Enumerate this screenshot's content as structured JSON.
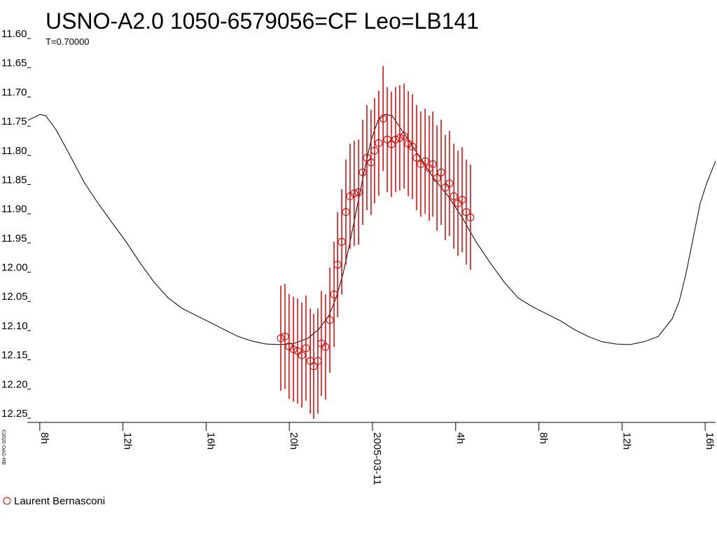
{
  "chart_data": {
    "type": "scatter",
    "title": "USNO-A2.0 1050-6579056=CF Leo=LB141",
    "subtitle": "T=0.70000",
    "credit": "©2020 OAG-RB",
    "xlim": [
      -16.6,
      16.5
    ],
    "xticks": [
      {
        "value": -16,
        "label": "8h"
      },
      {
        "value": -12,
        "label": "12h"
      },
      {
        "value": -8,
        "label": "16h"
      },
      {
        "value": -4,
        "label": "20h"
      },
      {
        "value": 0,
        "label": "2005-03-11"
      },
      {
        "value": 4,
        "label": "4h"
      },
      {
        "value": 8,
        "label": "8h"
      },
      {
        "value": 12,
        "label": "12h"
      },
      {
        "value": 16,
        "label": "16h"
      }
    ],
    "ylim": [
      11.6,
      12.25
    ],
    "y_inverted": true,
    "yticks": [
      {
        "value": 11.6,
        "label": "11.60"
      },
      11.65,
      {
        "value": 11.7,
        "label": "11.70"
      },
      11.75,
      {
        "value": 11.8,
        "label": "11.80"
      },
      11.85,
      {
        "value": 11.9,
        "label": "11.90"
      },
      11.95,
      {
        "value": 12,
        "label": "12.00"
      },
      12.05,
      {
        "value": 12.1,
        "label": "12.10"
      },
      12.15,
      {
        "value": 12.2,
        "label": "12.20"
      },
      12.25
    ],
    "series": [
      {
        "name": "Laurent Bernasconi",
        "color": "#e00000",
        "x": [
          -4.41,
          -4.21,
          -4.01,
          -3.8,
          -3.6,
          -3.4,
          -3.2,
          -2.99,
          -2.83,
          -2.63,
          -2.46,
          -2.26,
          -2.05,
          -1.85,
          -1.68,
          -1.48,
          -1.28,
          -1.08,
          -0.88,
          -0.67,
          -0.47,
          -0.27,
          -0.07,
          0.1,
          0.3,
          0.51,
          0.71,
          0.91,
          1.11,
          1.31,
          1.52,
          1.72,
          1.92,
          2.12,
          2.32,
          2.53,
          2.73,
          2.9,
          3.1,
          3.3,
          3.5,
          3.7,
          3.91,
          4.11,
          4.31,
          4.51,
          4.71
        ],
        "values": [
          12.113,
          12.11,
          12.127,
          12.132,
          12.135,
          12.142,
          12.13,
          12.152,
          12.161,
          12.152,
          12.122,
          12.128,
          12.082,
          12.038,
          11.987,
          11.948,
          11.897,
          11.87,
          11.865,
          11.863,
          11.829,
          11.804,
          11.812,
          11.792,
          11.779,
          11.737,
          11.773,
          11.781,
          11.773,
          11.77,
          11.767,
          11.78,
          11.785,
          11.804,
          11.815,
          11.81,
          11.822,
          11.815,
          11.839,
          11.829,
          11.855,
          11.848,
          11.87,
          11.882,
          11.876,
          11.897,
          11.906
        ],
        "errors": [
          0.09,
          0.09,
          0.09,
          0.09,
          0.09,
          0.09,
          0.09,
          0.09,
          0.09,
          0.09,
          0.09,
          0.09,
          0.09,
          0.09,
          0.09,
          0.09,
          0.09,
          0.09,
          0.09,
          0.09,
          0.09,
          0.09,
          0.09,
          0.09,
          0.09,
          0.09,
          0.09,
          0.09,
          0.09,
          0.09,
          0.09,
          0.09,
          0.09,
          0.09,
          0.09,
          0.09,
          0.09,
          0.09,
          0.09,
          0.09,
          0.09,
          0.09,
          0.09,
          0.09,
          0.09,
          0.09,
          0.09
        ]
      }
    ],
    "curve": {
      "color": "#000000",
      "x": [
        -16.57,
        -15.99,
        -15.72,
        -15.22,
        -14.55,
        -13.87,
        -13.2,
        -12.53,
        -11.85,
        -11.18,
        -10.51,
        -9.83,
        -9.16,
        -8.49,
        -7.81,
        -7.14,
        -6.46,
        -5.79,
        -5.12,
        -4.44,
        -3.77,
        -3.1,
        -2.59,
        -2.09,
        -1.75,
        -1.41,
        -1.08,
        -0.74,
        -0.4,
        -0.07,
        0.27,
        0.61,
        0.94,
        1.28,
        1.62,
        2.29,
        2.96,
        3.64,
        4.31,
        4.98,
        5.66,
        6.33,
        7.0,
        7.68,
        8.35,
        9.02,
        9.7,
        10.37,
        11.04,
        11.72,
        12.39,
        13.06,
        13.74,
        14.41,
        14.75,
        15.08,
        15.42,
        15.76,
        16.09,
        16.5
      ],
      "values": [
        11.74,
        11.73,
        11.732,
        11.756,
        11.8,
        11.846,
        11.882,
        11.915,
        11.948,
        11.984,
        12.017,
        12.044,
        12.062,
        12.074,
        12.086,
        12.098,
        12.11,
        12.118,
        12.123,
        12.124,
        12.122,
        12.113,
        12.098,
        12.074,
        12.044,
        12.002,
        11.948,
        11.888,
        11.828,
        11.774,
        11.74,
        11.73,
        11.732,
        11.75,
        11.768,
        11.804,
        11.84,
        11.87,
        11.906,
        11.948,
        11.984,
        12.017,
        12.044,
        12.059,
        12.071,
        12.083,
        12.098,
        12.11,
        12.119,
        12.123,
        12.124,
        12.119,
        12.11,
        12.08,
        12.05,
        12.002,
        11.942,
        11.882,
        11.846,
        11.81
      ]
    }
  }
}
